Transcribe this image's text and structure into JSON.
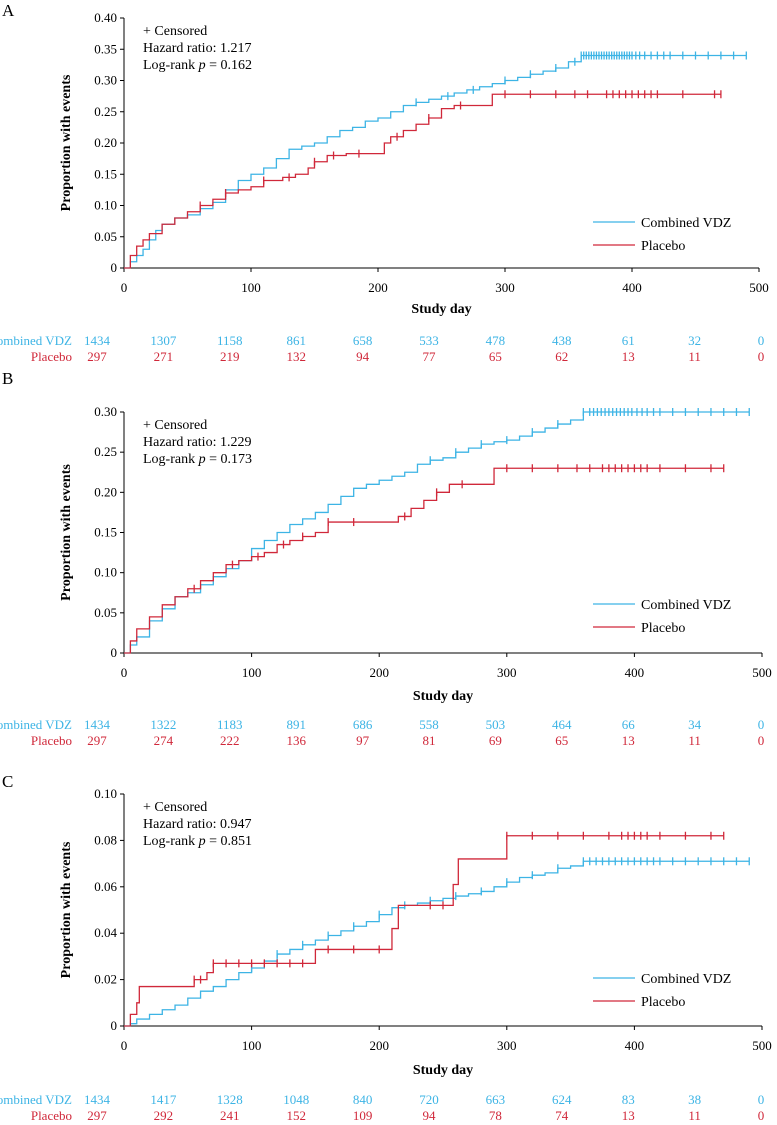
{
  "colors": {
    "vdz": "#3db4e5",
    "placebo": "#d0283a"
  },
  "common": {
    "xlabel": "Study day",
    "ylabel": "Proportion with events",
    "censored_label": "+ Censored",
    "series_names": [
      "Combined VDZ",
      "Placebo"
    ],
    "risk_labels": [
      "Combined VDZ",
      "Placebo"
    ],
    "x_ticks": [
      0,
      100,
      200,
      300,
      400,
      500
    ]
  },
  "chart_data": [
    {
      "type": "line",
      "panel_label": "A",
      "hazard_ratio": "Hazard ratio: 1.217",
      "logrank_prefix": "Log-rank ",
      "logrank_p": "p",
      "logrank_value": " = 0.162",
      "xlim": [
        0,
        500
      ],
      "ylim": [
        0,
        0.4
      ],
      "y_ticks": [
        "0",
        "0.05",
        "0.10",
        "0.15",
        "0.20",
        "0.25",
        "0.30",
        "0.35",
        "0.40"
      ],
      "series": [
        {
          "name": "Combined VDZ",
          "x": [
            0,
            5,
            10,
            15,
            20,
            25,
            30,
            40,
            50,
            60,
            70,
            80,
            90,
            100,
            110,
            120,
            130,
            140,
            150,
            160,
            170,
            180,
            190,
            200,
            210,
            220,
            230,
            240,
            250,
            260,
            270,
            280,
            290,
            300,
            310,
            320,
            330,
            340,
            350,
            360,
            370,
            380,
            400,
            420,
            440,
            460,
            480,
            490
          ],
          "y": [
            0,
            0.01,
            0.02,
            0.03,
            0.045,
            0.06,
            0.07,
            0.08,
            0.085,
            0.095,
            0.105,
            0.125,
            0.14,
            0.15,
            0.16,
            0.175,
            0.19,
            0.195,
            0.2,
            0.21,
            0.22,
            0.225,
            0.235,
            0.24,
            0.25,
            0.26,
            0.265,
            0.27,
            0.275,
            0.28,
            0.285,
            0.29,
            0.295,
            0.3,
            0.305,
            0.31,
            0.315,
            0.32,
            0.33,
            0.34,
            0.34,
            0.34,
            0.34,
            0.34,
            0.34,
            0.34,
            0.34,
            0.34
          ],
          "censor_x": [
            230,
            255,
            275,
            300,
            320,
            340,
            355,
            360,
            362,
            364,
            366,
            368,
            370,
            372,
            374,
            376,
            378,
            380,
            382,
            384,
            386,
            388,
            390,
            392,
            394,
            396,
            398,
            400,
            403,
            406,
            410,
            415,
            420,
            425,
            430,
            440,
            450,
            460,
            470,
            480,
            490
          ]
        },
        {
          "name": "Placebo",
          "x": [
            0,
            5,
            10,
            15,
            20,
            30,
            40,
            50,
            60,
            70,
            80,
            90,
            100,
            110,
            125,
            135,
            145,
            150,
            160,
            175,
            195,
            205,
            210,
            220,
            230,
            240,
            250,
            260,
            270,
            290,
            295,
            470
          ],
          "y": [
            0,
            0.02,
            0.035,
            0.045,
            0.055,
            0.07,
            0.08,
            0.09,
            0.1,
            0.11,
            0.12,
            0.125,
            0.13,
            0.14,
            0.145,
            0.15,
            0.16,
            0.17,
            0.18,
            0.183,
            0.183,
            0.2,
            0.21,
            0.22,
            0.23,
            0.24,
            0.255,
            0.26,
            0.26,
            0.278,
            0.278,
            0.278
          ],
          "censor_x": [
            60,
            80,
            110,
            130,
            150,
            165,
            185,
            215,
            240,
            265,
            300,
            320,
            340,
            355,
            365,
            380,
            385,
            390,
            395,
            400,
            405,
            410,
            415,
            420,
            440,
            465,
            470
          ]
        }
      ],
      "at_risk": {
        "days": [
          0,
          50,
          100,
          150,
          200,
          250,
          300,
          350,
          400,
          450,
          500
        ],
        "vdz": [
          "1434",
          "1307",
          "1158",
          "861",
          "658",
          "533",
          "478",
          "438",
          "61",
          "32",
          "0"
        ],
        "placebo": [
          "297",
          "271",
          "219",
          "132",
          "94",
          "77",
          "65",
          "62",
          "13",
          "11",
          "0"
        ]
      }
    },
    {
      "type": "line",
      "panel_label": "B",
      "hazard_ratio": "Hazard ratio: 1.229",
      "logrank_prefix": "Log-rank ",
      "logrank_p": "p",
      "logrank_value": " = 0.173",
      "xlim": [
        0,
        500
      ],
      "ylim": [
        0,
        0.3
      ],
      "y_ticks": [
        "0",
        "0.05",
        "0.10",
        "0.15",
        "0.20",
        "0.25",
        "0.30"
      ],
      "series": [
        {
          "name": "Combined VDZ",
          "x": [
            0,
            5,
            10,
            20,
            30,
            40,
            50,
            60,
            70,
            80,
            90,
            100,
            110,
            120,
            130,
            140,
            150,
            160,
            170,
            180,
            190,
            200,
            210,
            220,
            230,
            240,
            250,
            260,
            270,
            280,
            290,
            300,
            310,
            320,
            330,
            340,
            350,
            360,
            370,
            380,
            400,
            420,
            440,
            460,
            480,
            490
          ],
          "y": [
            0,
            0.01,
            0.02,
            0.04,
            0.055,
            0.07,
            0.075,
            0.085,
            0.095,
            0.105,
            0.115,
            0.13,
            0.14,
            0.15,
            0.16,
            0.167,
            0.175,
            0.185,
            0.195,
            0.205,
            0.21,
            0.215,
            0.22,
            0.225,
            0.235,
            0.24,
            0.243,
            0.25,
            0.255,
            0.26,
            0.263,
            0.265,
            0.27,
            0.275,
            0.28,
            0.285,
            0.29,
            0.3,
            0.3,
            0.3,
            0.3,
            0.3,
            0.3,
            0.3,
            0.3,
            0.3
          ],
          "censor_x": [
            240,
            260,
            280,
            300,
            320,
            340,
            360,
            365,
            368,
            371,
            374,
            377,
            380,
            383,
            386,
            389,
            392,
            395,
            398,
            402,
            406,
            410,
            415,
            420,
            430,
            440,
            450,
            460,
            470,
            480,
            490
          ]
        },
        {
          "name": "Placebo",
          "x": [
            0,
            5,
            10,
            20,
            30,
            40,
            50,
            60,
            70,
            80,
            90,
            100,
            110,
            120,
            130,
            140,
            150,
            160,
            175,
            200,
            215,
            225,
            235,
            245,
            255,
            270,
            290,
            300,
            470
          ],
          "y": [
            0,
            0.015,
            0.03,
            0.045,
            0.06,
            0.07,
            0.08,
            0.09,
            0.1,
            0.11,
            0.115,
            0.12,
            0.125,
            0.135,
            0.14,
            0.145,
            0.15,
            0.163,
            0.163,
            0.163,
            0.17,
            0.18,
            0.19,
            0.2,
            0.21,
            0.21,
            0.23,
            0.23,
            0.23
          ],
          "censor_x": [
            55,
            85,
            105,
            125,
            140,
            160,
            180,
            220,
            245,
            265,
            300,
            320,
            340,
            355,
            365,
            375,
            380,
            385,
            390,
            395,
            400,
            405,
            410,
            420,
            440,
            460,
            470
          ]
        }
      ],
      "at_risk": {
        "days": [
          0,
          50,
          100,
          150,
          200,
          250,
          300,
          350,
          400,
          450,
          500
        ],
        "vdz": [
          "1434",
          "1322",
          "1183",
          "891",
          "686",
          "558",
          "503",
          "464",
          "66",
          "34",
          "0"
        ],
        "placebo": [
          "297",
          "274",
          "222",
          "136",
          "97",
          "81",
          "69",
          "65",
          "13",
          "11",
          "0"
        ]
      }
    },
    {
      "type": "line",
      "panel_label": "C",
      "hazard_ratio": "Hazard ratio: 0.947",
      "logrank_prefix": "Log-rank ",
      "logrank_p": "p",
      "logrank_value": " = 0.851",
      "xlim": [
        0,
        500
      ],
      "ylim": [
        0,
        0.1
      ],
      "y_ticks": [
        "0",
        "0.02",
        "0.04",
        "0.06",
        "0.08",
        "0.10"
      ],
      "series": [
        {
          "name": "Combined VDZ",
          "x": [
            0,
            5,
            10,
            20,
            30,
            40,
            50,
            60,
            70,
            80,
            90,
            100,
            110,
            120,
            130,
            140,
            150,
            160,
            170,
            180,
            190,
            200,
            210,
            220,
            230,
            240,
            250,
            260,
            270,
            280,
            290,
            300,
            310,
            320,
            330,
            340,
            350,
            360,
            380,
            400,
            420,
            440,
            460,
            480,
            490
          ],
          "y": [
            0,
            0.001,
            0.003,
            0.005,
            0.007,
            0.009,
            0.012,
            0.015,
            0.017,
            0.02,
            0.023,
            0.025,
            0.028,
            0.031,
            0.033,
            0.035,
            0.037,
            0.039,
            0.041,
            0.043,
            0.045,
            0.048,
            0.051,
            0.052,
            0.053,
            0.054,
            0.055,
            0.056,
            0.057,
            0.058,
            0.06,
            0.062,
            0.064,
            0.065,
            0.066,
            0.068,
            0.069,
            0.071,
            0.071,
            0.071,
            0.071,
            0.071,
            0.071,
            0.071,
            0.071
          ],
          "censor_x": [
            100,
            120,
            140,
            160,
            180,
            200,
            220,
            240,
            260,
            280,
            300,
            320,
            340,
            360,
            365,
            370,
            375,
            380,
            385,
            390,
            395,
            400,
            405,
            410,
            415,
            420,
            430,
            440,
            450,
            460,
            470,
            480,
            490
          ]
        },
        {
          "name": "Placebo",
          "x": [
            0,
            5,
            10,
            12,
            50,
            55,
            65,
            70,
            100,
            145,
            150,
            205,
            210,
            215,
            240,
            258,
            262,
            295,
            300,
            470
          ],
          "y": [
            0,
            0.005,
            0.01,
            0.017,
            0.017,
            0.02,
            0.023,
            0.027,
            0.027,
            0.027,
            0.033,
            0.033,
            0.042,
            0.052,
            0.052,
            0.061,
            0.072,
            0.072,
            0.082,
            0.082
          ],
          "censor_x": [
            55,
            60,
            70,
            80,
            90,
            100,
            110,
            120,
            130,
            140,
            160,
            180,
            200,
            240,
            250,
            300,
            320,
            340,
            360,
            380,
            390,
            395,
            400,
            405,
            410,
            420,
            440,
            460,
            470
          ]
        }
      ],
      "at_risk": {
        "days": [
          0,
          50,
          100,
          150,
          200,
          250,
          300,
          350,
          400,
          450,
          500
        ],
        "vdz": [
          "1434",
          "1417",
          "1328",
          "1048",
          "840",
          "720",
          "663",
          "624",
          "83",
          "38",
          "0"
        ],
        "placebo": [
          "297",
          "292",
          "241",
          "152",
          "109",
          "94",
          "78",
          "74",
          "13",
          "11",
          "0"
        ]
      }
    }
  ]
}
